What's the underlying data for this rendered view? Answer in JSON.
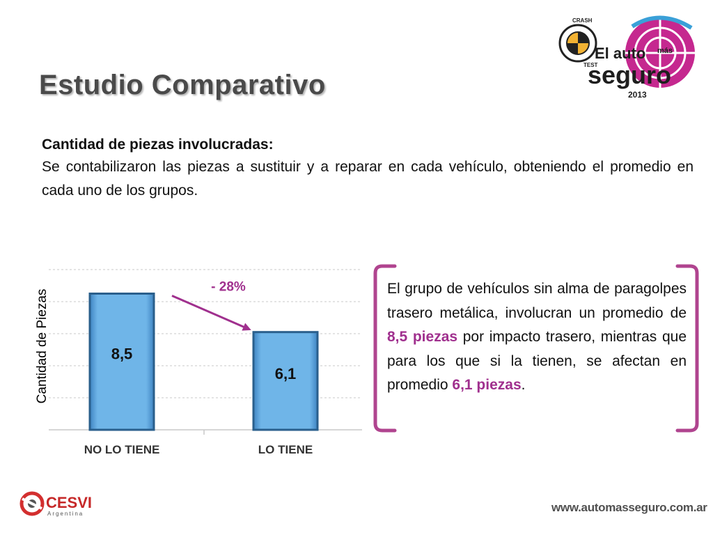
{
  "slide": {
    "title": "Estudio Comparativo",
    "heading": "Cantidad de piezas involucradas:",
    "description": "Se contabilizaron las piezas a sustituir y a reparar en cada vehículo, obteniendo el promedio en cada uno de los grupos."
  },
  "callout": {
    "part1": "El grupo de vehículos sin alma de paragolpes trasero metálica, involucran un promedio de ",
    "value1": "8,5 piezas",
    "part2": " por impacto trasero, mientras que para los que si la tienen, se afectan en promedio ",
    "value2": "6,1 piezas",
    "part3": "."
  },
  "brand": {
    "badge_top": "CRASH",
    "badge_bottom": "TEST",
    "line1": "El auto",
    "line1_small": "más",
    "line2": "seguro",
    "year": "2013"
  },
  "footer": {
    "cesvi": "CESVI",
    "cesvi_sub": "Argentina",
    "website": "www.automasseguro.com.ar"
  },
  "colors": {
    "bar": "#6fb5e8",
    "bar_edge": "#2a5f8c",
    "accent": "#a0308e",
    "bracket": "#b0448f",
    "title": "#4a4a4a"
  },
  "chart_data": {
    "type": "bar",
    "categories": [
      "NO LO TIENE",
      "LO TIENE"
    ],
    "values": [
      8.5,
      6.1
    ],
    "value_labels": [
      "8,5",
      "6,1"
    ],
    "ylabel": "Cantidad de Piezas",
    "ylim": [
      0,
      10
    ],
    "grid": true,
    "annotation": "- 28%"
  }
}
